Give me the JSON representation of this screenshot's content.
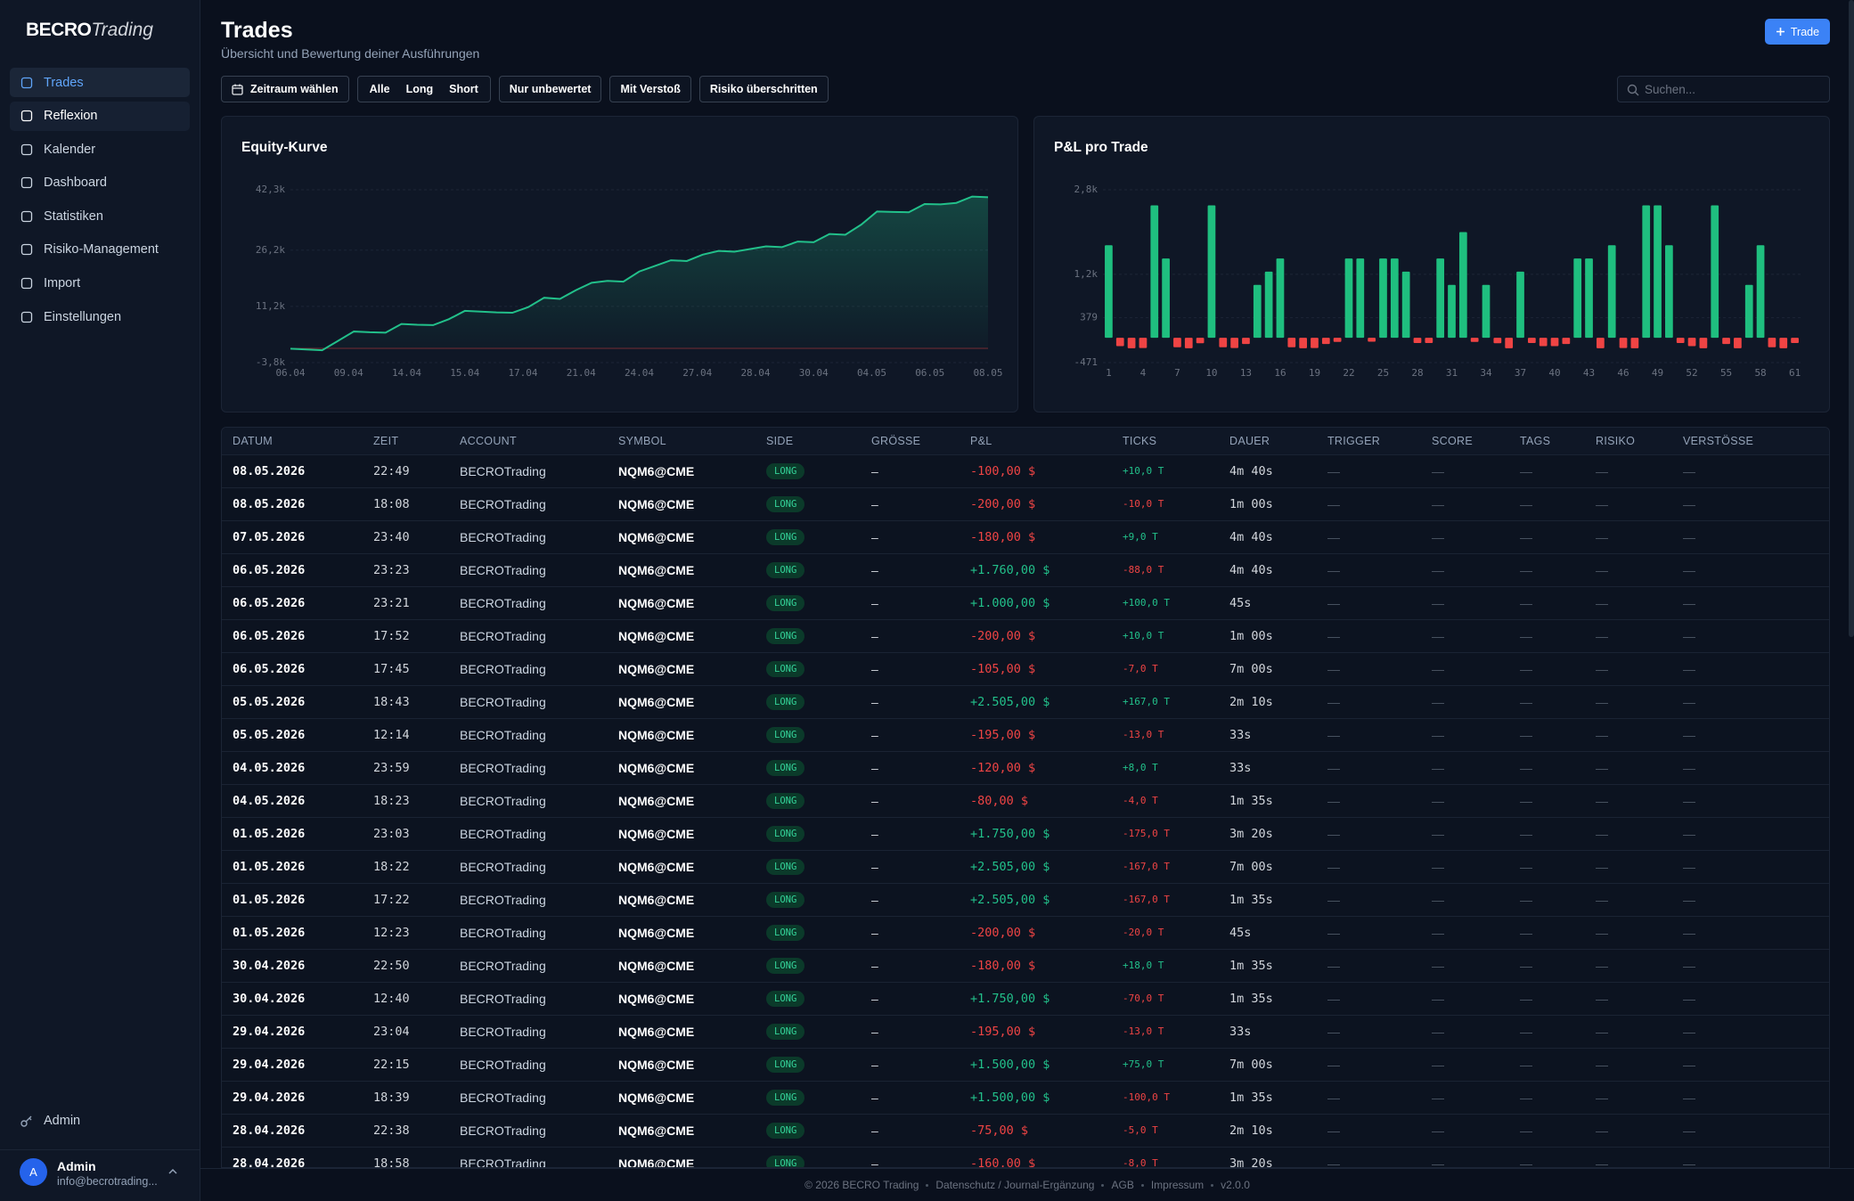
{
  "sidebar": {
    "logo_bold": "BECRO",
    "logo_italic": "Trading",
    "nav": [
      "Trades",
      "Reflexion",
      "Kalender",
      "Dashboard",
      "Statistiken",
      "Risiko-Management",
      "Import",
      "Einstellungen"
    ],
    "admin": "Admin",
    "user": {
      "avatar": "A",
      "name": "Admin",
      "email": "info@becrotrading..."
    }
  },
  "header": {
    "title": "Trades",
    "subtitle": "Übersicht und Bewertung deiner Ausführungen",
    "new_button": "Trade"
  },
  "filters": {
    "date": "Zeitraum wählen",
    "sides": [
      "Alle",
      "Long",
      "Short"
    ],
    "toggles": [
      "Nur unbewertet",
      "Mit Verstoß",
      "Risiko überschritten"
    ],
    "search_placeholder": "Suchen..."
  },
  "chart_data": [
    {
      "type": "line",
      "title": "Equity-Kurve",
      "color": "#22c08a",
      "values": [
        -100,
        -300,
        -500,
        2000,
        4500,
        4300,
        4200,
        6500,
        6300,
        6200,
        7800,
        10000,
        9800,
        9600,
        9500,
        11000,
        13500,
        13200,
        15500,
        17500,
        18000,
        17800,
        20500,
        22000,
        23500,
        23300,
        25000,
        26000,
        25800,
        26500,
        27200,
        27000,
        28500,
        28300,
        30500,
        30300,
        33000,
        36500,
        36400,
        36300,
        38500,
        38400,
        38800,
        40500,
        40300
      ],
      "ylim": [
        -3800,
        42300
      ],
      "yticks": [
        {
          "value": -3800,
          "label": "-3,8k"
        },
        {
          "value": 11200,
          "label": "11,2k"
        },
        {
          "value": 26200,
          "label": "26,2k"
        },
        {
          "value": 42300,
          "label": "42,3k"
        }
      ],
      "xtick_labels": [
        "06.04",
        "09.04",
        "14.04",
        "15.04",
        "17.04",
        "21.04",
        "24.04",
        "27.04",
        "28.04",
        "30.04",
        "04.05",
        "06.05",
        "08.05"
      ],
      "grid": true
    },
    {
      "type": "bar",
      "title": "P&L pro Trade",
      "positive_color": "#1fbf7f",
      "negative_color": "#ef4444",
      "values": [
        1750,
        -160,
        -200,
        -195,
        2505,
        1500,
        -180,
        -200,
        -105,
        2505,
        -180,
        -195,
        -120,
        1000,
        1250,
        1500,
        -180,
        -200,
        -195,
        -120,
        -80,
        1500,
        1500,
        -75,
        1500,
        1500,
        1250,
        -100,
        -100,
        1500,
        1000,
        2000,
        -80,
        1000,
        -105,
        -200,
        1250,
        -100,
        -160,
        -160,
        -120,
        1500,
        1500,
        -200,
        1750,
        -195,
        -200,
        2505,
        2505,
        1750,
        -100,
        -160,
        -200,
        2505,
        -120,
        -200,
        1000,
        1750,
        -180,
        -200,
        -100
      ],
      "ylim": [
        -471,
        2800
      ],
      "yticks": [
        -471,
        379,
        {
          "value": 1200,
          "label": "1,2k"
        },
        {
          "value": 2800,
          "label": "2,8k"
        }
      ],
      "xlim": [
        1,
        61
      ],
      "xticks": [
        1,
        4,
        7,
        10,
        13,
        16,
        19,
        22,
        25,
        28,
        31,
        34,
        37,
        40,
        43,
        46,
        49,
        52,
        55,
        58,
        61
      ],
      "grid": true
    }
  ],
  "table": {
    "columns": [
      "DATUM",
      "ZEIT",
      "ACCOUNT",
      "SYMBOL",
      "SIDE",
      "GRÖSSE",
      "P&L",
      "TICKS",
      "DAUER",
      "TRIGGER",
      "SCORE",
      "TAGS",
      "RISIKO",
      "VERSTÖSSE"
    ],
    "rows": [
      [
        "08.05.2026",
        "22:49",
        "BECROTrading",
        "NQM6@CME",
        "LONG",
        "–",
        "-100,00 $",
        "+10,0 T",
        "4m 40s",
        "—",
        "—",
        "—",
        "—",
        "—"
      ],
      [
        "08.05.2026",
        "18:08",
        "BECROTrading",
        "NQM6@CME",
        "LONG",
        "–",
        "-200,00 $",
        "-10,0 T",
        "1m 00s",
        "—",
        "—",
        "—",
        "—",
        "—"
      ],
      [
        "07.05.2026",
        "23:40",
        "BECROTrading",
        "NQM6@CME",
        "LONG",
        "–",
        "-180,00 $",
        "+9,0 T",
        "4m 40s",
        "—",
        "—",
        "—",
        "—",
        "—"
      ],
      [
        "06.05.2026",
        "23:23",
        "BECROTrading",
        "NQM6@CME",
        "LONG",
        "–",
        "+1.760,00 $",
        "-88,0 T",
        "4m 40s",
        "—",
        "—",
        "—",
        "—",
        "—"
      ],
      [
        "06.05.2026",
        "23:21",
        "BECROTrading",
        "NQM6@CME",
        "LONG",
        "–",
        "+1.000,00 $",
        "+100,0 T",
        "45s",
        "—",
        "—",
        "—",
        "—",
        "—"
      ],
      [
        "06.05.2026",
        "17:52",
        "BECROTrading",
        "NQM6@CME",
        "LONG",
        "–",
        "-200,00 $",
        "+10,0 T",
        "1m 00s",
        "—",
        "—",
        "—",
        "—",
        "—"
      ],
      [
        "06.05.2026",
        "17:45",
        "BECROTrading",
        "NQM6@CME",
        "LONG",
        "–",
        "-105,00 $",
        "-7,0 T",
        "7m 00s",
        "—",
        "—",
        "—",
        "—",
        "—"
      ],
      [
        "05.05.2026",
        "18:43",
        "BECROTrading",
        "NQM6@CME",
        "LONG",
        "–",
        "+2.505,00 $",
        "+167,0 T",
        "2m 10s",
        "—",
        "—",
        "—",
        "—",
        "—"
      ],
      [
        "05.05.2026",
        "12:14",
        "BECROTrading",
        "NQM6@CME",
        "LONG",
        "–",
        "-195,00 $",
        "-13,0 T",
        "33s",
        "—",
        "—",
        "—",
        "—",
        "—"
      ],
      [
        "04.05.2026",
        "23:59",
        "BECROTrading",
        "NQM6@CME",
        "LONG",
        "–",
        "-120,00 $",
        "+8,0 T",
        "33s",
        "—",
        "—",
        "—",
        "—",
        "—"
      ],
      [
        "04.05.2026",
        "18:23",
        "BECROTrading",
        "NQM6@CME",
        "LONG",
        "–",
        "-80,00 $",
        "-4,0 T",
        "1m 35s",
        "—",
        "—",
        "—",
        "—",
        "—"
      ],
      [
        "01.05.2026",
        "23:03",
        "BECROTrading",
        "NQM6@CME",
        "LONG",
        "–",
        "+1.750,00 $",
        "-175,0 T",
        "3m 20s",
        "—",
        "—",
        "—",
        "—",
        "—"
      ],
      [
        "01.05.2026",
        "18:22",
        "BECROTrading",
        "NQM6@CME",
        "LONG",
        "–",
        "+2.505,00 $",
        "-167,0 T",
        "7m 00s",
        "—",
        "—",
        "—",
        "—",
        "—"
      ],
      [
        "01.05.2026",
        "17:22",
        "BECROTrading",
        "NQM6@CME",
        "LONG",
        "–",
        "+2.505,00 $",
        "-167,0 T",
        "1m 35s",
        "—",
        "—",
        "—",
        "—",
        "—"
      ],
      [
        "01.05.2026",
        "12:23",
        "BECROTrading",
        "NQM6@CME",
        "LONG",
        "–",
        "-200,00 $",
        "-20,0 T",
        "45s",
        "—",
        "—",
        "—",
        "—",
        "—"
      ],
      [
        "30.04.2026",
        "22:50",
        "BECROTrading",
        "NQM6@CME",
        "LONG",
        "–",
        "-180,00 $",
        "+18,0 T",
        "1m 35s",
        "—",
        "—",
        "—",
        "—",
        "—"
      ],
      [
        "30.04.2026",
        "12:40",
        "BECROTrading",
        "NQM6@CME",
        "LONG",
        "–",
        "+1.750,00 $",
        "-70,0 T",
        "1m 35s",
        "—",
        "—",
        "—",
        "—",
        "—"
      ],
      [
        "29.04.2026",
        "23:04",
        "BECROTrading",
        "NQM6@CME",
        "LONG",
        "–",
        "-195,00 $",
        "-13,0 T",
        "33s",
        "—",
        "—",
        "—",
        "—",
        "—"
      ],
      [
        "29.04.2026",
        "22:15",
        "BECROTrading",
        "NQM6@CME",
        "LONG",
        "–",
        "+1.500,00 $",
        "+75,0 T",
        "7m 00s",
        "—",
        "—",
        "—",
        "—",
        "—"
      ],
      [
        "29.04.2026",
        "18:39",
        "BECROTrading",
        "NQM6@CME",
        "LONG",
        "–",
        "+1.500,00 $",
        "-100,0 T",
        "1m 35s",
        "—",
        "—",
        "—",
        "—",
        "—"
      ],
      [
        "28.04.2026",
        "22:38",
        "BECROTrading",
        "NQM6@CME",
        "LONG",
        "–",
        "-75,00 $",
        "-5,0 T",
        "2m 10s",
        "—",
        "—",
        "—",
        "—",
        "—"
      ],
      [
        "28.04.2026",
        "18:58",
        "BECROTrading",
        "NQM6@CME",
        "LONG",
        "–",
        "-160,00 $",
        "-8,0 T",
        "3m 20s",
        "—",
        "—",
        "—",
        "—",
        "—"
      ]
    ]
  },
  "footer": [
    "© 2026 BECRO Trading",
    "Datenschutz / Journal-Ergänzung",
    "AGB",
    "Impressum",
    "v2.0.0"
  ]
}
